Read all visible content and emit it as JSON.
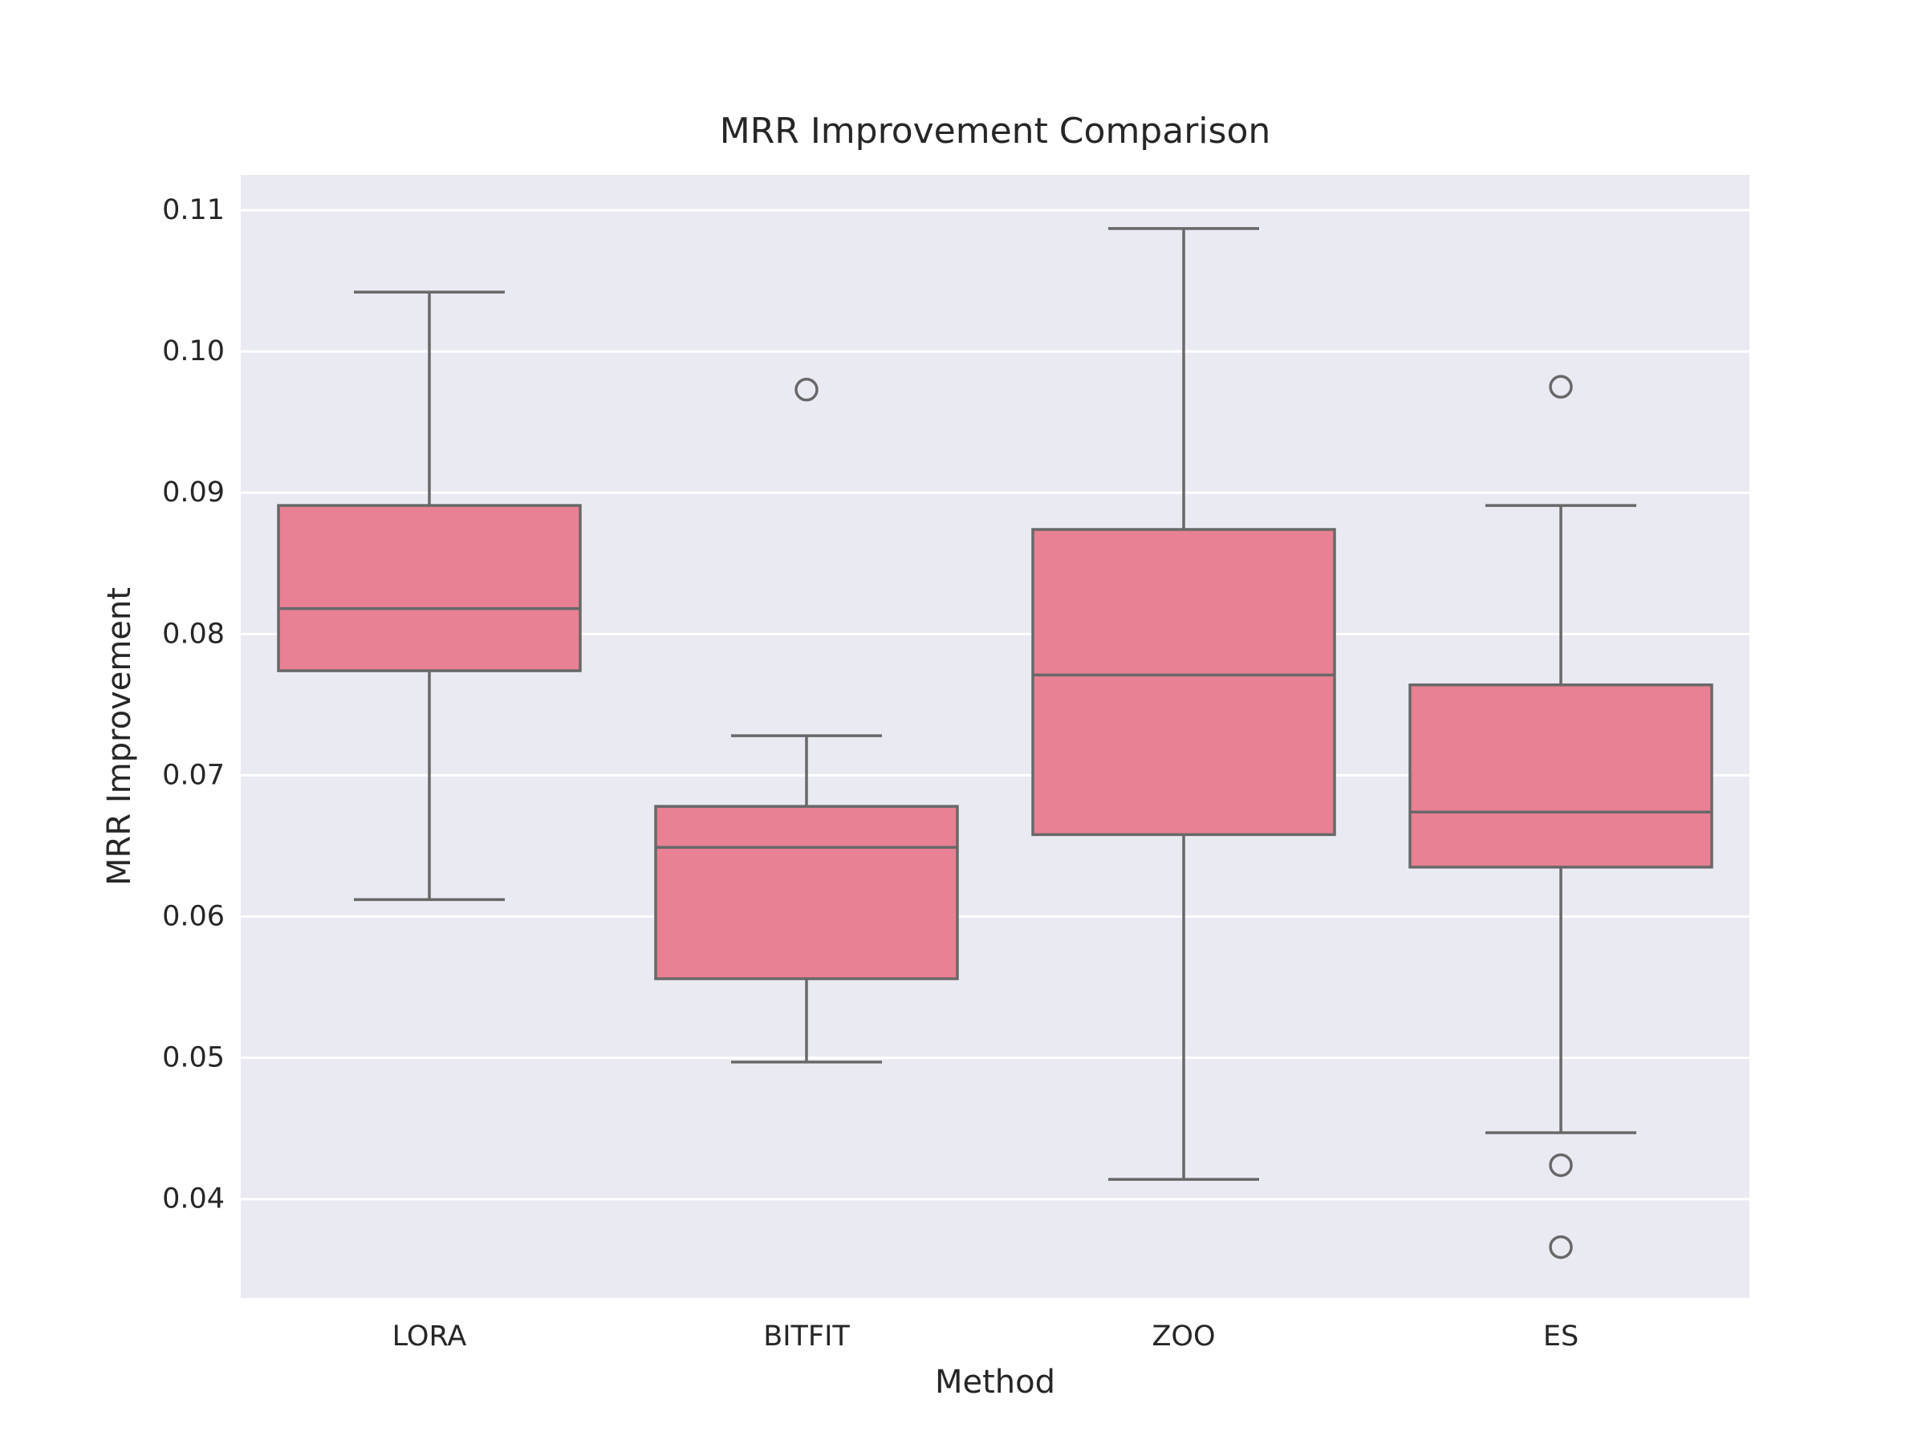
{
  "chart_data": {
    "type": "box",
    "title": "MRR Improvement Comparison",
    "xlabel": "Method",
    "ylabel": "MRR Improvement",
    "ylim": [
      0.033,
      0.1125
    ],
    "yticks": [
      {
        "value": 0.04,
        "label": "0.04"
      },
      {
        "value": 0.05,
        "label": "0.05"
      },
      {
        "value": 0.06,
        "label": "0.06"
      },
      {
        "value": 0.07,
        "label": "0.07"
      },
      {
        "value": 0.08,
        "label": "0.08"
      },
      {
        "value": 0.09,
        "label": "0.09"
      },
      {
        "value": 0.1,
        "label": "0.10"
      },
      {
        "value": 0.11,
        "label": "0.11"
      }
    ],
    "categories": [
      "LORA",
      "BITFIT",
      "ZOO",
      "ES"
    ],
    "boxes": [
      {
        "category": "LORA",
        "whisker_low": 0.0612,
        "q1": 0.0774,
        "median": 0.0818,
        "q3": 0.0891,
        "whisker_high": 0.1042,
        "outliers": []
      },
      {
        "category": "BITFIT",
        "whisker_low": 0.0497,
        "q1": 0.0556,
        "median": 0.0649,
        "q3": 0.0678,
        "whisker_high": 0.0728,
        "outliers": [
          0.0973
        ]
      },
      {
        "category": "ZOO",
        "whisker_low": 0.0414,
        "q1": 0.0658,
        "median": 0.0771,
        "q3": 0.0874,
        "whisker_high": 0.1087,
        "outliers": []
      },
      {
        "category": "ES",
        "whisker_low": 0.0447,
        "q1": 0.0635,
        "median": 0.0674,
        "q3": 0.0764,
        "whisker_high": 0.0891,
        "outliers": [
          0.0975,
          0.0424,
          0.0366
        ]
      }
    ],
    "grid": true,
    "legend": "none",
    "colors": {
      "box_fill": "#e88193",
      "box_edge": "#686868",
      "plot_background": "#eaeaf2",
      "grid": "#ffffff",
      "text": "#262626"
    }
  }
}
